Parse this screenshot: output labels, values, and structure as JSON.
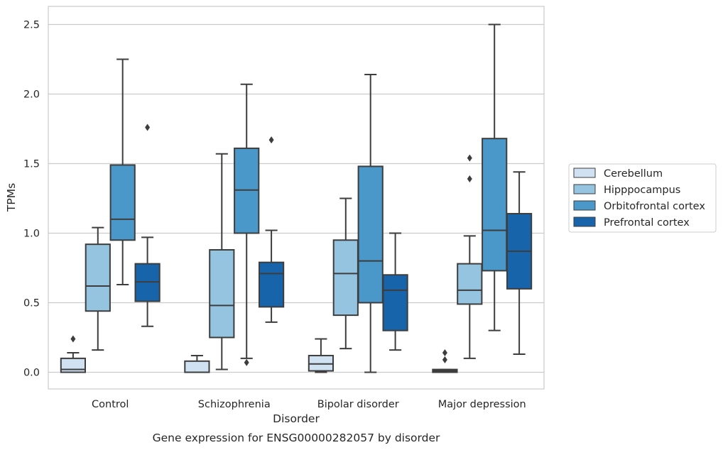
{
  "chart_data": {
    "type": "box",
    "caption": "Gene expression for ENSG00000282057 by disorder",
    "xlabel": "Disorder",
    "ylabel": "TPMs",
    "ylim": [
      -0.12,
      2.63
    ],
    "yticks": [
      "0.0",
      "0.5",
      "1.0",
      "1.5",
      "2.0",
      "2.5"
    ],
    "grid": "horizontal",
    "legend_position": "right",
    "categories": [
      "Control",
      "Schizophrenia",
      "Bipolar disorder",
      "Major depression"
    ],
    "series": [
      {
        "name": "Cerebellum",
        "color": "#d0e1f2",
        "boxes": [
          {
            "whisker_low": 0.0,
            "q1": 0.0,
            "median": 0.02,
            "q3": 0.1,
            "whisker_high": 0.14,
            "outliers": [
              0.24
            ]
          },
          {
            "whisker_low": 0.0,
            "q1": 0.0,
            "median": 0.0,
            "q3": 0.08,
            "whisker_high": 0.12,
            "outliers": []
          },
          {
            "whisker_low": 0.0,
            "q1": 0.01,
            "median": 0.06,
            "q3": 0.12,
            "whisker_high": 0.24,
            "outliers": []
          },
          {
            "whisker_low": 0.0,
            "q1": 0.0,
            "median": 0.01,
            "q3": 0.02,
            "whisker_high": 0.02,
            "outliers": [
              0.09,
              0.14
            ]
          }
        ]
      },
      {
        "name": "Hipppocampus",
        "color": "#94c4df",
        "boxes": [
          {
            "whisker_low": 0.16,
            "q1": 0.44,
            "median": 0.62,
            "q3": 0.92,
            "whisker_high": 1.04,
            "outliers": []
          },
          {
            "whisker_low": 0.02,
            "q1": 0.25,
            "median": 0.48,
            "q3": 0.88,
            "whisker_high": 1.57,
            "outliers": []
          },
          {
            "whisker_low": 0.17,
            "q1": 0.41,
            "median": 0.71,
            "q3": 0.95,
            "whisker_high": 1.25,
            "outliers": []
          },
          {
            "whisker_low": 0.1,
            "q1": 0.49,
            "median": 0.59,
            "q3": 0.78,
            "whisker_high": 0.98,
            "outliers": [
              1.39,
              1.54
            ]
          }
        ]
      },
      {
        "name": "Orbitofrontal cortex",
        "color": "#4a98c9",
        "boxes": [
          {
            "whisker_low": 0.63,
            "q1": 0.95,
            "median": 1.1,
            "q3": 1.49,
            "whisker_high": 2.25,
            "outliers": []
          },
          {
            "whisker_low": 0.1,
            "q1": 1.0,
            "median": 1.31,
            "q3": 1.61,
            "whisker_high": 2.07,
            "outliers": [
              0.07
            ]
          },
          {
            "whisker_low": 0.0,
            "q1": 0.5,
            "median": 0.8,
            "q3": 1.48,
            "whisker_high": 2.14,
            "outliers": []
          },
          {
            "whisker_low": 0.3,
            "q1": 0.73,
            "median": 1.02,
            "q3": 1.68,
            "whisker_high": 2.5,
            "outliers": []
          }
        ]
      },
      {
        "name": "Prefrontal cortex",
        "color": "#1764ab",
        "boxes": [
          {
            "whisker_low": 0.33,
            "q1": 0.51,
            "median": 0.65,
            "q3": 0.78,
            "whisker_high": 0.97,
            "outliers": [
              1.76
            ]
          },
          {
            "whisker_low": 0.36,
            "q1": 0.47,
            "median": 0.71,
            "q3": 0.79,
            "whisker_high": 1.02,
            "outliers": [
              1.67
            ]
          },
          {
            "whisker_low": 0.16,
            "q1": 0.3,
            "median": 0.59,
            "q3": 0.7,
            "whisker_high": 1.0,
            "outliers": []
          },
          {
            "whisker_low": 0.13,
            "q1": 0.6,
            "median": 0.87,
            "q3": 1.14,
            "whisker_high": 1.44,
            "outliers": []
          }
        ]
      }
    ]
  }
}
